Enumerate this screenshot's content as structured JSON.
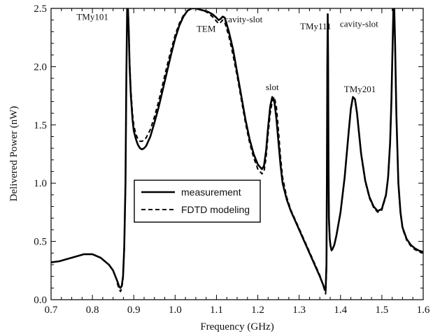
{
  "chart_data": {
    "type": "line",
    "title": "",
    "xlabel": "Frequency (GHz)",
    "ylabel": "Delivered Power (nW)",
    "xlim": [
      0.7,
      1.6
    ],
    "ylim": [
      0.0,
      2.5
    ],
    "xticks": [
      0.7,
      0.8,
      0.9,
      1.0,
      1.1,
      1.2,
      1.3,
      1.4,
      1.5,
      1.6
    ],
    "yticks": [
      0.0,
      0.5,
      1.0,
      1.5,
      2.0,
      2.5
    ],
    "xtick_labels": [
      "0.7",
      "0.8",
      "0.9",
      "1.0",
      "1.1",
      "1.2",
      "1.3",
      "1.4",
      "1.5",
      "1.6"
    ],
    "ytick_labels": [
      "0.0",
      "0.5",
      "1.0",
      "1.5",
      "2.0",
      "2.5"
    ],
    "grid": false,
    "legend_position": "center-left",
    "annotations": [
      {
        "text": "TMy101",
        "x": 0.8,
        "y": 2.4
      },
      {
        "text": "TEM",
        "x": 1.075,
        "y": 2.3
      },
      {
        "text": "cavity-slot",
        "x": 1.165,
        "y": 2.38
      },
      {
        "text": "TMy111",
        "x": 1.34,
        "y": 2.32
      },
      {
        "text": "cavity-slot",
        "x": 1.445,
        "y": 2.34
      },
      {
        "text": "slot",
        "x": 1.235,
        "y": 1.8
      },
      {
        "text": "TMy201",
        "x": 1.447,
        "y": 1.78
      }
    ],
    "series": [
      {
        "name": "measurement",
        "style": "solid",
        "color": "#000000",
        "x": [
          0.7,
          0.72,
          0.74,
          0.76,
          0.78,
          0.8,
          0.82,
          0.84,
          0.85,
          0.86,
          0.865,
          0.868,
          0.871,
          0.874,
          0.877,
          0.88,
          0.882,
          0.884,
          0.886,
          0.888,
          0.89,
          0.893,
          0.897,
          0.9,
          0.905,
          0.91,
          0.915,
          0.92,
          0.925,
          0.93,
          0.94,
          0.95,
          0.96,
          0.97,
          0.98,
          0.99,
          1.0,
          1.01,
          1.02,
          1.03,
          1.04,
          1.05,
          1.06,
          1.07,
          1.08,
          1.09,
          1.1,
          1.105,
          1.11,
          1.115,
          1.12,
          1.13,
          1.14,
          1.15,
          1.16,
          1.17,
          1.18,
          1.19,
          1.2,
          1.21,
          1.215,
          1.22,
          1.225,
          1.23,
          1.235,
          1.24,
          1.245,
          1.25,
          1.255,
          1.26,
          1.27,
          1.28,
          1.29,
          1.3,
          1.31,
          1.32,
          1.33,
          1.34,
          1.35,
          1.36,
          1.364,
          1.366,
          1.367,
          1.368,
          1.369,
          1.37,
          1.371,
          1.372,
          1.374,
          1.376,
          1.378,
          1.38,
          1.385,
          1.39,
          1.4,
          1.41,
          1.42,
          1.425,
          1.43,
          1.435,
          1.44,
          1.445,
          1.45,
          1.46,
          1.47,
          1.48,
          1.49,
          1.5,
          1.51,
          1.515,
          1.52,
          1.523,
          1.526,
          1.528,
          1.53,
          1.532,
          1.535,
          1.54,
          1.545,
          1.55,
          1.56,
          1.57,
          1.58,
          1.59,
          1.6
        ],
        "y": [
          0.32,
          0.33,
          0.35,
          0.37,
          0.39,
          0.39,
          0.36,
          0.3,
          0.25,
          0.16,
          0.11,
          0.1,
          0.12,
          0.2,
          0.45,
          1.0,
          1.9,
          2.5,
          2.5,
          2.3,
          2.0,
          1.75,
          1.55,
          1.45,
          1.38,
          1.33,
          1.3,
          1.29,
          1.3,
          1.32,
          1.4,
          1.52,
          1.65,
          1.8,
          1.95,
          2.1,
          2.24,
          2.35,
          2.43,
          2.48,
          2.5,
          2.5,
          2.49,
          2.48,
          2.47,
          2.45,
          2.42,
          2.4,
          2.41,
          2.43,
          2.42,
          2.3,
          2.15,
          1.95,
          1.75,
          1.55,
          1.38,
          1.25,
          1.16,
          1.12,
          1.15,
          1.28,
          1.48,
          1.66,
          1.74,
          1.7,
          1.55,
          1.35,
          1.15,
          1.0,
          0.86,
          0.76,
          0.68,
          0.6,
          0.52,
          0.44,
          0.36,
          0.28,
          0.2,
          0.11,
          0.08,
          0.3,
          1.0,
          2.0,
          2.45,
          2.1,
          1.2,
          0.7,
          0.52,
          0.46,
          0.43,
          0.43,
          0.47,
          0.55,
          0.75,
          1.05,
          1.45,
          1.64,
          1.74,
          1.72,
          1.6,
          1.42,
          1.25,
          1.02,
          0.88,
          0.8,
          0.76,
          0.78,
          0.9,
          1.05,
          1.35,
          1.7,
          2.2,
          2.5,
          2.5,
          2.2,
          1.6,
          1.0,
          0.75,
          0.62,
          0.52,
          0.47,
          0.44,
          0.42,
          0.41
        ]
      },
      {
        "name": "FDTD modeling",
        "style": "dashed",
        "color": "#000000",
        "x": [
          0.86,
          0.865,
          0.868,
          0.871,
          0.874,
          0.877,
          0.88,
          0.882,
          0.884,
          0.886,
          0.888,
          0.89,
          0.893,
          0.897,
          0.9,
          0.905,
          0.91,
          0.915,
          0.92,
          0.925,
          0.93,
          0.94,
          0.95,
          0.96,
          0.97,
          0.98,
          0.99,
          1.0,
          1.01,
          1.02,
          1.03,
          1.04,
          1.05,
          1.06,
          1.07,
          1.08,
          1.09,
          1.1,
          1.105,
          1.11,
          1.115,
          1.12,
          1.13,
          1.14,
          1.15,
          1.16,
          1.17,
          1.18,
          1.19,
          1.2,
          1.21,
          1.215,
          1.22,
          1.225,
          1.23,
          1.235,
          1.24,
          1.245,
          1.25,
          1.255,
          1.26,
          1.27,
          1.28,
          1.29,
          1.3,
          1.31,
          1.32,
          1.33,
          1.34,
          1.35,
          1.36,
          1.364,
          1.366,
          1.367,
          1.368,
          1.369,
          1.37,
          1.371,
          1.372,
          1.374,
          1.376,
          1.378,
          1.38,
          1.385,
          1.39,
          1.4,
          1.41,
          1.42,
          1.425,
          1.43,
          1.435,
          1.44,
          1.445,
          1.45,
          1.46,
          1.47,
          1.48,
          1.49,
          1.5,
          1.51,
          1.515,
          1.52,
          1.523,
          1.526,
          1.528,
          1.53,
          1.532,
          1.535,
          1.54,
          1.545,
          1.55,
          1.56,
          1.57,
          1.58,
          1.59,
          1.6
        ],
        "y": [
          0.14,
          0.09,
          0.07,
          0.1,
          0.18,
          0.42,
          0.95,
          1.85,
          2.45,
          2.5,
          2.35,
          2.05,
          1.8,
          1.6,
          1.5,
          1.42,
          1.38,
          1.36,
          1.36,
          1.37,
          1.39,
          1.46,
          1.57,
          1.7,
          1.85,
          2.0,
          2.14,
          2.27,
          2.37,
          2.44,
          2.48,
          2.5,
          2.5,
          2.49,
          2.48,
          2.46,
          2.43,
          2.39,
          2.37,
          2.38,
          2.4,
          2.38,
          2.26,
          2.1,
          1.92,
          1.72,
          1.52,
          1.35,
          1.22,
          1.12,
          1.08,
          1.1,
          1.22,
          1.42,
          1.6,
          1.7,
          1.74,
          1.65,
          1.45,
          1.22,
          1.05,
          0.88,
          0.77,
          0.69,
          0.61,
          0.53,
          0.45,
          0.37,
          0.29,
          0.21,
          0.1,
          0.05,
          0.25,
          0.95,
          1.95,
          2.4,
          2.05,
          1.15,
          0.68,
          0.51,
          0.45,
          0.42,
          0.43,
          0.47,
          0.55,
          0.75,
          1.05,
          1.44,
          1.63,
          1.73,
          1.71,
          1.59,
          1.41,
          1.24,
          1.01,
          0.87,
          0.79,
          0.75,
          0.77,
          0.89,
          1.04,
          1.33,
          1.68,
          2.18,
          2.5,
          2.48,
          2.18,
          1.58,
          0.98,
          0.74,
          0.61,
          0.51,
          0.46,
          0.43,
          0.41,
          0.4
        ]
      }
    ]
  }
}
